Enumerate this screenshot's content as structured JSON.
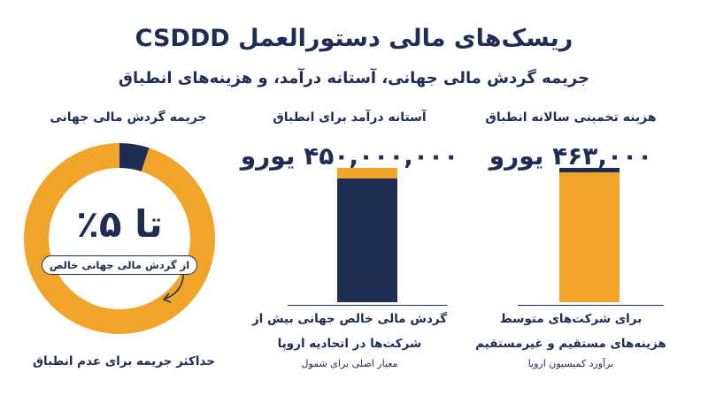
{
  "title": "ریسک‌های مالی دستورالعمل CSDDD",
  "subtitle": "جریمه گردش مالی جهانی، آستانه درآمد، و هزینه‌های انطباق",
  "colors": {
    "navy": "#1f2d54",
    "gold": "#f0a52a"
  },
  "cost_column": {
    "title": "هزینه تخمینی سالانه انطباق",
    "value": "۴۶۳,۰۰۰ یورو",
    "note_line1": "برای شرکت‌های متوسط",
    "note_line2": "هزینه‌های مستقیم و غیرمستقیم",
    "source": "برآورد کمیسیون اروپا"
  },
  "revenue_column": {
    "title": "آستانه درآمد برای انطباق",
    "value": "۴۵۰,۰۰۰,۰۰۰ یورو",
    "note_line1": "گردش مالی خالص جهانی بیش از",
    "note_line2": "شرکت‌ها در اتحادیه اروپا",
    "source": "معیار اصلی برای شمول"
  },
  "penalty_column": {
    "title": "جریمه گردش مالی جهانی",
    "percent_label": "تا ۵٪",
    "percent_note": "از گردش مالی جهانی خالص",
    "bottom_label": "حداکثر جریمه برای عدم انطباق"
  },
  "chart_data": {
    "type": "bar",
    "categories": [
      "هزینه تخمینی سالانه انطباق",
      "آستانه درآمد برای انطباق",
      "جریمه گردش مالی جهانی"
    ],
    "values": [
      463000,
      450000000,
      5
    ],
    "penalty_percent": 5,
    "bar_revenue_cap_share": 0.08,
    "bar_cost_cap_share": 0.03
  }
}
